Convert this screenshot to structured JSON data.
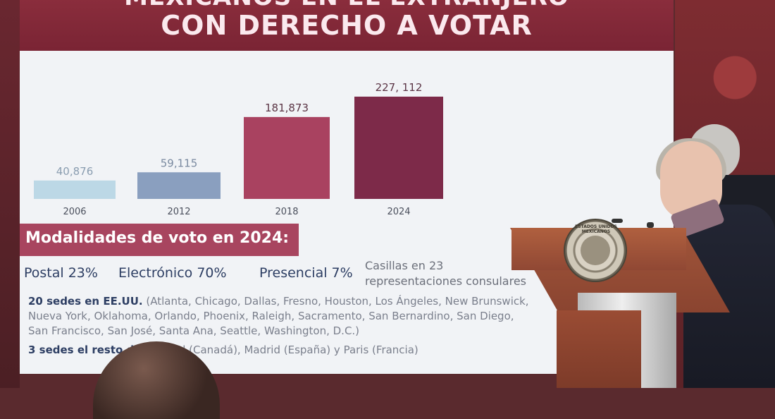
{
  "slide": {
    "title_line1": "MEXICANOS EN EL EXTRANJERO",
    "title_line2": "CON DERECHO A VOTAR"
  },
  "chart_data": {
    "type": "bar",
    "title": "",
    "xlabel": "",
    "ylabel": "",
    "categories": [
      "2006",
      "2012",
      "2018",
      "2024"
    ],
    "values": [
      40876,
      59115,
      181873,
      227112
    ],
    "value_labels": [
      "40,876",
      "59,115",
      "181,873",
      "227, 112"
    ],
    "colors": [
      "#bcd8e6",
      "#8a9fbf",
      "#a94260",
      "#7d2a49"
    ],
    "label_colors": [
      "#8a9db0",
      "#7a8aa0",
      "#5a3444",
      "#5a3444"
    ],
    "ylim": [
      0,
      227112
    ],
    "grid": false,
    "legend": "none"
  },
  "modalities": {
    "heading": "Modalidades de voto en 2024:",
    "postal": "Postal 23%",
    "electronico": "Electrónico 70%",
    "presencial": "Presencial 7%",
    "casillas": "Casillas en 23 representaciones consulares"
  },
  "sedes": {
    "us_bold": "20 sedes en EE.UU.",
    "us_cities": "(Atlanta, Chicago, Dallas, Fresno, Houston, Los Ángeles, New Brunswick, Nueva York, Oklahoma, Orlando, Phoenix, Raleigh, Sacramento, San Bernardino, San Diego, San Francisco, San José, Santa Ana, Seattle, Washington, D.C.)",
    "rest_bold": "3 sedes el resto del",
    "rest_cities": "ontreal (Canadá), Madrid (España) y Paris (Francia)"
  },
  "seal": {
    "text": "ESTADOS UNIDOS MEXICANOS"
  }
}
